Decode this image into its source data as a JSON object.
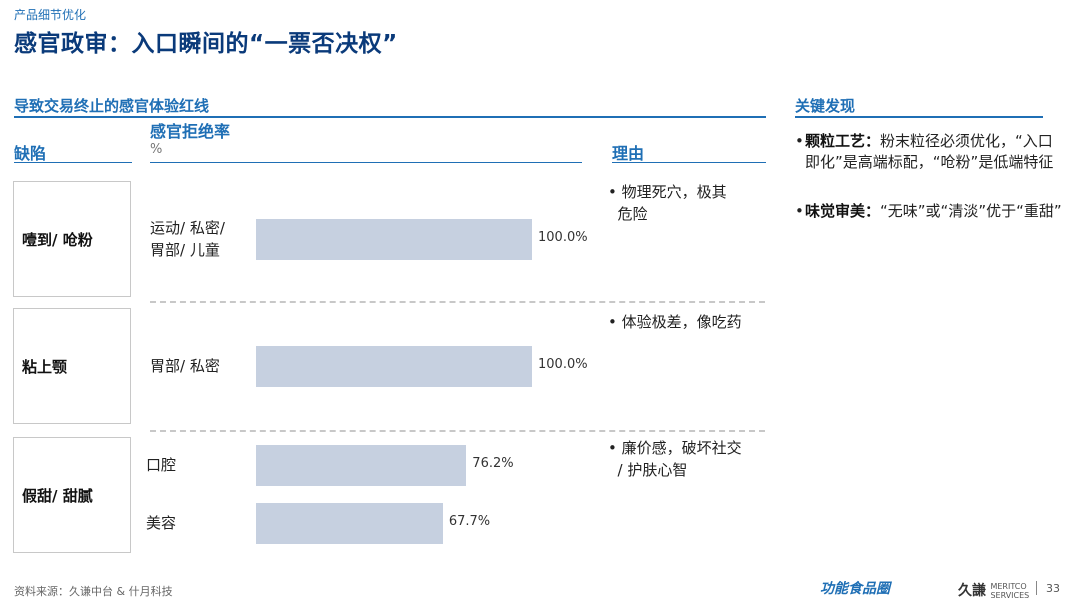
{
  "header": {
    "kicker": "产品细节优化",
    "title": "感官政审：入口瞬间的“一票否决权”"
  },
  "left_section_title": "导致交易终止的感官体验红线",
  "right_section_title": "关键发现",
  "columns": {
    "defect": "缺陷",
    "rate": "感官拒绝率",
    "rate_unit": "%",
    "reason": "理由"
  },
  "chart_data": {
    "type": "bar",
    "orientation": "horizontal",
    "value_unit": "%",
    "groups": [
      {
        "defect": "噎到/ 呛粉",
        "bars": [
          {
            "category": "运动/ 私密/\n胃部/ 儿童",
            "value": 100.0,
            "label": "100.0%"
          }
        ],
        "reason": "• 物理死穴，极其\n  危险"
      },
      {
        "defect": "粘上颚",
        "bars": [
          {
            "category": "胃部/ 私密",
            "value": 100.0,
            "label": "100.0%"
          }
        ],
        "reason": "• 体验极差，像吃药"
      },
      {
        "defect": "假甜/ 甜腻",
        "bars": [
          {
            "category": "口腔",
            "value": 76.2,
            "label": "76.2%"
          },
          {
            "category": "美容",
            "value": 67.7,
            "label": "67.7%"
          }
        ],
        "reason": "• 廉价感，破坏社交\n  / 护肤心智"
      }
    ]
  },
  "findings": [
    {
      "head": "颗粒工艺：",
      "text": "粉末粒径必须优化，“入口即化”是高端标配，“呛粉”是低端特征"
    },
    {
      "head": "味觉审美：",
      "text": "“无味”或“清淡”优于“重甜”"
    }
  ],
  "footer": {
    "source": "资料来源：久谦中台 & 什月科技",
    "logo_left": "功能食品圈",
    "logo_right_cn": "久謙",
    "logo_right_en1": "MERITCO",
    "logo_right_en2": "SERVICES",
    "page": "33"
  }
}
